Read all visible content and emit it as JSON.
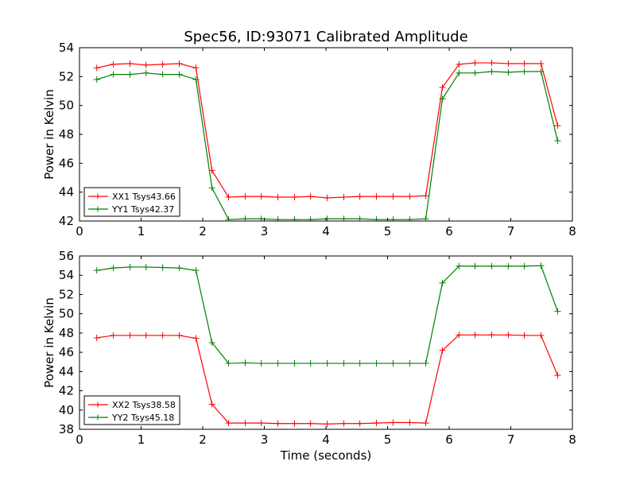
{
  "chart_data": [
    {
      "type": "line",
      "title": "Spec56, ID:93071 Calibrated Amplitude",
      "xlabel": "",
      "ylabel": "Power in Kelvin",
      "xlim": [
        0,
        8
      ],
      "ylim": [
        42,
        54
      ],
      "xticks": [
        0,
        1,
        2,
        3,
        4,
        5,
        6,
        7,
        8
      ],
      "yticks": [
        42,
        44,
        46,
        48,
        50,
        52,
        54
      ],
      "grid": false,
      "legend_position": "lower-left",
      "x": [
        0.28,
        0.55,
        0.82,
        1.08,
        1.35,
        1.62,
        1.89,
        2.15,
        2.42,
        2.69,
        2.95,
        3.22,
        3.49,
        3.75,
        4.02,
        4.29,
        4.55,
        4.82,
        5.09,
        5.36,
        5.62,
        5.89,
        6.16,
        6.42,
        6.69,
        6.96,
        7.22,
        7.49,
        7.76
      ],
      "series": [
        {
          "name": "XX1 Tsys43.66",
          "color": "#ff0000",
          "values": [
            52.6,
            52.85,
            52.9,
            52.8,
            52.85,
            52.9,
            52.6,
            45.5,
            43.65,
            43.7,
            43.7,
            43.65,
            43.65,
            43.7,
            43.6,
            43.65,
            43.7,
            43.7,
            43.7,
            43.7,
            43.75,
            51.25,
            52.85,
            52.95,
            52.95,
            52.9,
            52.9,
            52.9,
            48.6
          ]
        },
        {
          "name": "YY1 Tsys42.37",
          "color": "#008000",
          "values": [
            51.8,
            52.15,
            52.15,
            52.25,
            52.15,
            52.15,
            51.8,
            44.3,
            42.1,
            42.15,
            42.15,
            42.1,
            42.1,
            42.1,
            42.15,
            42.15,
            42.15,
            42.1,
            42.1,
            42.1,
            42.15,
            50.45,
            52.25,
            52.25,
            52.35,
            52.3,
            52.35,
            52.35,
            47.55
          ]
        }
      ]
    },
    {
      "type": "line",
      "title": "",
      "xlabel": "Time (seconds)",
      "ylabel": "Power in Kelvin",
      "xlim": [
        0,
        8
      ],
      "ylim": [
        38,
        56
      ],
      "xticks": [
        0,
        1,
        2,
        3,
        4,
        5,
        6,
        7,
        8
      ],
      "yticks": [
        38,
        40,
        42,
        44,
        46,
        48,
        50,
        52,
        54,
        56
      ],
      "grid": false,
      "legend_position": "lower-left",
      "x": [
        0.28,
        0.55,
        0.82,
        1.08,
        1.35,
        1.62,
        1.89,
        2.15,
        2.42,
        2.69,
        2.95,
        3.22,
        3.49,
        3.75,
        4.02,
        4.29,
        4.55,
        4.82,
        5.09,
        5.36,
        5.62,
        5.89,
        6.16,
        6.42,
        6.69,
        6.96,
        7.22,
        7.49,
        7.76
      ],
      "series": [
        {
          "name": "XX2 Tsys38.58",
          "color": "#ff0000",
          "values": [
            47.5,
            47.75,
            47.75,
            47.75,
            47.75,
            47.75,
            47.45,
            40.6,
            38.65,
            38.65,
            38.65,
            38.6,
            38.6,
            38.6,
            38.55,
            38.6,
            38.6,
            38.65,
            38.7,
            38.7,
            38.65,
            46.2,
            47.8,
            47.8,
            47.8,
            47.8,
            47.75,
            47.75,
            43.6
          ]
        },
        {
          "name": "YY2 Tsys45.18",
          "color": "#008000",
          "values": [
            54.5,
            54.75,
            54.85,
            54.85,
            54.8,
            54.75,
            54.5,
            47.0,
            44.85,
            44.9,
            44.85,
            44.85,
            44.85,
            44.85,
            44.85,
            44.85,
            44.85,
            44.85,
            44.85,
            44.85,
            44.85,
            53.2,
            54.95,
            54.95,
            54.95,
            54.95,
            54.95,
            55.0,
            50.25
          ]
        }
      ]
    }
  ]
}
